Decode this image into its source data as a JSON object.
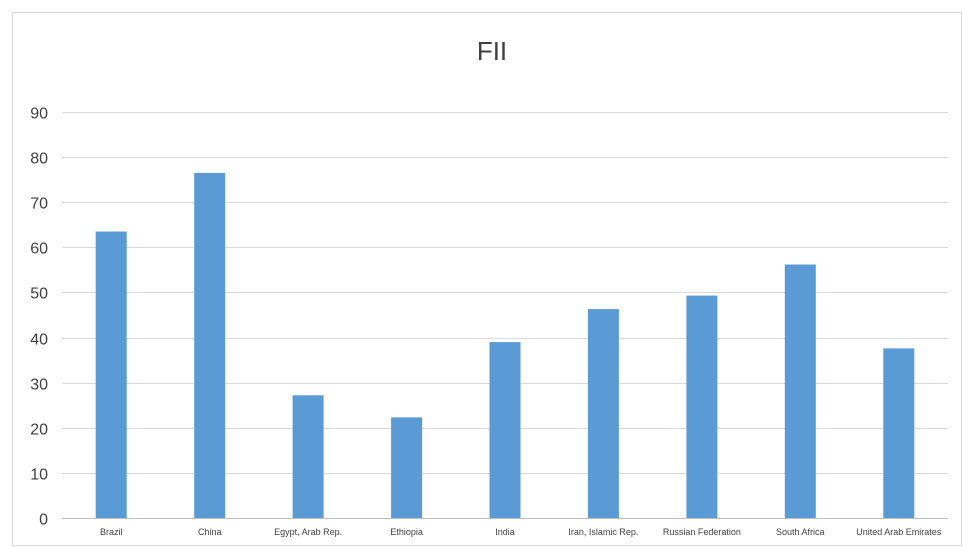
{
  "chart_data": {
    "type": "bar",
    "title": "FII",
    "xlabel": "",
    "ylabel": "",
    "categories": [
      "Brazil",
      "China",
      "Egypt, Arab Rep.",
      "Ethiopia",
      "India",
      "Iran, Islamic Rep.",
      "Russian Federation",
      "South Africa",
      "United Arab Emirates"
    ],
    "values": [
      63.5,
      76.5,
      27.2,
      22.3,
      39.0,
      46.3,
      49.3,
      56.2,
      37.6
    ],
    "ylim": [
      0,
      90
    ],
    "yticks": [
      0,
      10,
      20,
      30,
      40,
      50,
      60,
      70,
      80,
      90
    ],
    "grid": true,
    "legend": "none",
    "bar_color": "#5b9bd5"
  }
}
